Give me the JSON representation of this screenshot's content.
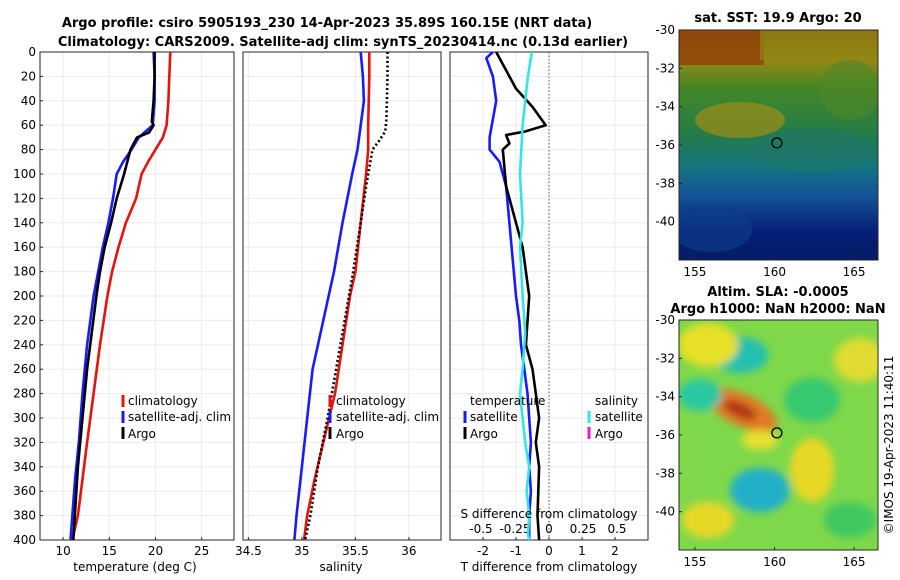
{
  "titles": {
    "line1": "Argo profile: csiro 5905193_230 14-Apr-2023 35.89S 160.15E (NRT data)",
    "line2": "Climatology: CARS2009. Satellite-adj clim: synTS_20230414.nc (0.13d earlier)"
  },
  "colors": {
    "climatology": "#e8120c",
    "satellite": "#1a1aff",
    "argo": "#000000",
    "satellite_salinity": "#33e6e6",
    "argo_salinity": "#e61ad0"
  },
  "watermark": "©IMOS 19-Apr-2023 11:40:11",
  "chart_data": [
    {
      "type": "line",
      "name": "temperature",
      "xlabel": "temperature (deg C)",
      "ylabel": "",
      "xlim": [
        7.5,
        28.5
      ],
      "ylim": [
        0,
        400
      ],
      "xticks": [
        "10",
        "15",
        "20",
        "25"
      ],
      "xtick_values": [
        10,
        15,
        20,
        25
      ],
      "yticks": [
        "0",
        "20",
        "40",
        "60",
        "80",
        "100",
        "120",
        "140",
        "160",
        "180",
        "200",
        "220",
        "240",
        "260",
        "280",
        "300",
        "320",
        "340",
        "360",
        "380",
        "400"
      ],
      "legend": [
        "climatology",
        "satellite-adj. clim",
        "Argo"
      ],
      "series": [
        {
          "name": "climatology",
          "color": "#e8120c",
          "x": [
            21.6,
            21.5,
            21.4,
            21.2,
            20.8,
            20.0,
            19.2,
            18.5,
            17.9,
            16.8,
            16.0,
            15.3,
            14.8,
            14.0,
            13.3,
            12.6,
            12.1,
            11.6,
            11.0
          ],
          "y": [
            0,
            20,
            40,
            60,
            70,
            80,
            90,
            100,
            120,
            140,
            160,
            180,
            200,
            240,
            280,
            320,
            350,
            380,
            400
          ]
        },
        {
          "name": "satellite-adj. clim",
          "color": "#1a1aff",
          "x": [
            19.8,
            19.9,
            19.9,
            19.7,
            18.2,
            17.4,
            16.5,
            15.8,
            15.4,
            14.9,
            14.3,
            13.8,
            13.3,
            12.6,
            12.1,
            11.7,
            11.3,
            10.8
          ],
          "y": [
            0,
            20,
            40,
            60,
            70,
            80,
            90,
            100,
            120,
            140,
            160,
            180,
            200,
            240,
            280,
            320,
            350,
            400
          ]
        },
        {
          "name": "Argo",
          "color": "#000000",
          "x": [
            19.9,
            19.9,
            19.8,
            19.6,
            19.8,
            19.3,
            18.0,
            17.3,
            16.6,
            15.8,
            15.2,
            14.5,
            14.0,
            13.6,
            12.6,
            12.1,
            11.6,
            11.1
          ],
          "y": [
            0,
            20,
            40,
            57,
            60,
            66,
            70,
            80,
            100,
            120,
            140,
            160,
            180,
            200,
            260,
            300,
            340,
            400
          ]
        }
      ]
    },
    {
      "type": "line",
      "name": "salinity",
      "xlabel": "salinity",
      "xlim": [
        34.45,
        36.3
      ],
      "ylim": [
        0,
        400
      ],
      "xticks": [
        "34.5",
        "35",
        "35.5",
        "36"
      ],
      "xtick_values": [
        34.5,
        35.0,
        35.5,
        36.0
      ],
      "legend": [
        "climatology",
        "satellite-adj. clim",
        "Argo"
      ],
      "series": [
        {
          "name": "climatology",
          "color": "#e8120c",
          "x": [
            35.63,
            35.63,
            35.62,
            35.62,
            35.6,
            35.55,
            35.5,
            35.45,
            35.38,
            35.31,
            35.2,
            35.12,
            35.05,
            35.02
          ],
          "y": [
            0,
            20,
            60,
            80,
            100,
            140,
            180,
            200,
            240,
            280,
            320,
            350,
            380,
            400
          ]
        },
        {
          "name": "satellite-adj. clim",
          "color": "#1a1aff",
          "x": [
            35.55,
            35.57,
            35.58,
            35.55,
            35.52,
            35.47,
            35.38,
            35.3,
            35.2,
            35.1,
            35.05,
            35.0,
            34.95,
            34.93
          ],
          "y": [
            0,
            20,
            40,
            60,
            80,
            100,
            140,
            180,
            220,
            260,
            300,
            340,
            380,
            400
          ]
        },
        {
          "name": "Argo",
          "color": "#000000",
          "x": [
            35.8,
            35.8,
            35.79,
            35.78,
            35.72,
            35.66,
            35.6,
            35.55,
            35.48,
            35.4,
            35.32,
            35.24,
            35.15,
            35.08,
            35.03
          ],
          "y": [
            0,
            20,
            55,
            65,
            73,
            80,
            110,
            140,
            180,
            220,
            260,
            300,
            340,
            380,
            400
          ]
        }
      ]
    },
    {
      "type": "line",
      "name": "difference",
      "xlabel": "T difference from climatology",
      "top_label": "S difference from climatology",
      "xlim": [
        -3,
        3
      ],
      "ylim": [
        0,
        400
      ],
      "xticks": [
        "-2",
        "-1",
        "0",
        "1",
        "2"
      ],
      "xtick_values": [
        -2,
        -1,
        0,
        1,
        2
      ],
      "sticks": [
        "-0.5",
        "-0.25",
        "0",
        "0.25",
        "0.5"
      ],
      "stick_values": [
        -0.5,
        -0.25,
        0,
        0.25,
        0.5
      ],
      "legend_temperature_title": "temperature",
      "legend_salinity_title": "salinity",
      "legend_temperature": [
        "satellite",
        "Argo"
      ],
      "legend_salinity": [
        "satellite",
        "Argo"
      ],
      "series": [
        {
          "name": "T satellite",
          "color": "#1a1aff",
          "x": [
            -1.7,
            -1.9,
            -1.7,
            -1.6,
            -1.7,
            -1.8,
            -1.8,
            -1.5,
            -1.3,
            -1.2,
            -1.1,
            -1.0,
            -0.9,
            -0.85,
            -0.75,
            -0.65,
            -0.6,
            -0.55,
            -0.6,
            -0.55,
            -0.6,
            -0.6,
            -0.6
          ],
          "y": [
            0,
            5,
            20,
            40,
            55,
            70,
            80,
            90,
            110,
            140,
            170,
            200,
            220,
            240,
            260,
            280,
            300,
            320,
            340,
            360,
            380,
            395,
            400
          ]
        },
        {
          "name": "T Argo",
          "color": "#000000",
          "x": [
            -1.6,
            -1.4,
            -1.0,
            -0.5,
            -0.1,
            -0.7,
            -1.3,
            -1.2,
            -1.4,
            -1.3,
            -1.0,
            -0.8,
            -0.6,
            -0.7,
            -0.5,
            -0.4,
            -0.3,
            -0.4,
            -0.3,
            -0.35,
            -0.3
          ],
          "y": [
            0,
            10,
            30,
            45,
            60,
            65,
            68,
            75,
            80,
            110,
            140,
            160,
            200,
            240,
            260,
            280,
            300,
            320,
            340,
            380,
            400
          ]
        },
        {
          "name": "S satellite",
          "color": "#33e6e6",
          "x": [
            -0.13,
            -0.16,
            -0.2,
            -0.22,
            -0.2,
            -0.22,
            -0.2,
            -0.18,
            -0.2,
            -0.22,
            -0.2,
            -0.18,
            -0.15,
            -0.17,
            -0.15,
            -0.16,
            -0.15
          ],
          "y": [
            0,
            20,
            60,
            100,
            140,
            160,
            200,
            230,
            260,
            280,
            300,
            320,
            340,
            360,
            380,
            395,
            400
          ]
        }
      ]
    },
    {
      "type": "heatmap",
      "name": "sst_map",
      "title": "sat. SST: 19.9 Argo: 20",
      "xlim": [
        154,
        166.5
      ],
      "ylim": [
        -42,
        -30
      ],
      "xticks": [
        "155",
        "160",
        "165"
      ],
      "xtick_values": [
        155,
        160,
        165
      ],
      "yticks": [
        "-30",
        "-32",
        "-34",
        "-36",
        "-38",
        "-40"
      ],
      "ytick_values": [
        -30,
        -32,
        -34,
        -36,
        -38,
        -40
      ],
      "marker": {
        "lon": 160.15,
        "lat": -35.89
      }
    },
    {
      "type": "heatmap",
      "name": "sla_map",
      "title_line1": "Altim. SLA: -0.0005",
      "title_line2": "Argo h1000: NaN h2000: NaN",
      "xlim": [
        154,
        166.5
      ],
      "ylim": [
        -42,
        -30
      ],
      "xticks": [
        "155",
        "160",
        "165"
      ],
      "xtick_values": [
        155,
        160,
        165
      ],
      "yticks": [
        "-30",
        "-32",
        "-34",
        "-36",
        "-38",
        "-40"
      ],
      "ytick_values": [
        -30,
        -32,
        -34,
        -36,
        -38,
        -40
      ],
      "marker": {
        "lon": 160.15,
        "lat": -35.89
      }
    }
  ]
}
